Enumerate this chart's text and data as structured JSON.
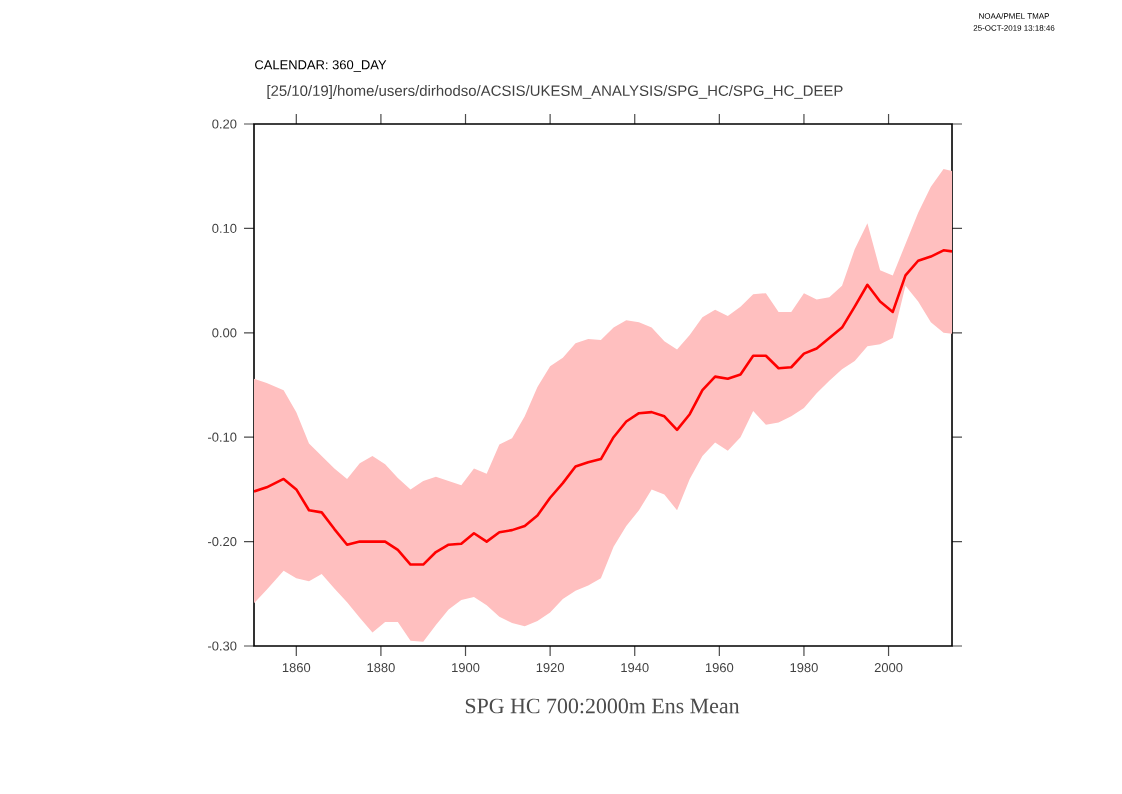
{
  "chart_data": {
    "type": "line",
    "title": "SPG HC 700:2000m Ens Mean",
    "annotations": [
      "CALENDAR: 360_DAY",
      "[25/10/19]/home/users/dirhodso/ACSIS/UKESM_ANALYSIS/SPG_HC/SPG_HC_DEEP",
      "NOAA/PMEL TMAP",
      "25-OCT-2019 13:18:46"
    ],
    "x": [
      1850,
      1853,
      1857,
      1860,
      1863,
      1866,
      1869,
      1872,
      1875,
      1878,
      1881,
      1884,
      1887,
      1890,
      1893,
      1896,
      1899,
      1902,
      1905,
      1908,
      1911,
      1914,
      1917,
      1920,
      1923,
      1926,
      1929,
      1932,
      1935,
      1938,
      1941,
      1944,
      1947,
      1950,
      1953,
      1956,
      1959,
      1962,
      1965,
      1968,
      1971,
      1974,
      1977,
      1980,
      1983,
      1986,
      1989,
      1992,
      1995,
      1998,
      2001,
      2004,
      2007,
      2010,
      2013,
      2015
    ],
    "series": [
      {
        "color": "#ff0000",
        "values": [
          -0.152,
          -0.148,
          -0.14,
          -0.15,
          -0.17,
          -0.172,
          -0.188,
          -0.203,
          -0.2,
          -0.2,
          -0.2,
          -0.208,
          -0.222,
          -0.222,
          -0.21,
          -0.203,
          -0.202,
          -0.192,
          -0.2,
          -0.191,
          -0.189,
          -0.185,
          -0.175,
          -0.158,
          -0.144,
          -0.128,
          -0.124,
          -0.121,
          -0.1,
          -0.085,
          -0.077,
          -0.076,
          -0.08,
          -0.093,
          -0.078,
          -0.055,
          -0.042,
          -0.044,
          -0.04,
          -0.022,
          -0.022,
          -0.034,
          -0.033,
          -0.02,
          -0.015,
          -0.005,
          0.005,
          0.025,
          0.046,
          0.03,
          0.02,
          0.055,
          0.069,
          0.073,
          0.079,
          0.078
        ],
        "upper": [
          -0.044,
          -0.048,
          -0.055,
          -0.076,
          -0.106,
          -0.118,
          -0.13,
          -0.14,
          -0.125,
          -0.118,
          -0.126,
          -0.139,
          -0.15,
          -0.142,
          -0.138,
          -0.142,
          -0.146,
          -0.13,
          -0.135,
          -0.107,
          -0.101,
          -0.08,
          -0.052,
          -0.032,
          -0.024,
          -0.01,
          -0.006,
          -0.007,
          0.005,
          0.012,
          0.01,
          0.005,
          -0.008,
          -0.016,
          -0.002,
          0.015,
          0.022,
          0.016,
          0.025,
          0.037,
          0.038,
          0.02,
          0.02,
          0.038,
          0.032,
          0.034,
          0.045,
          0.08,
          0.105,
          0.06,
          0.055,
          0.085,
          0.115,
          0.14,
          0.157,
          0.155
        ],
        "lower": [
          -0.259,
          -0.246,
          -0.228,
          -0.235,
          -0.238,
          -0.231,
          -0.245,
          -0.258,
          -0.273,
          -0.287,
          -0.277,
          -0.277,
          -0.295,
          -0.296,
          -0.28,
          -0.265,
          -0.256,
          -0.253,
          -0.261,
          -0.272,
          -0.278,
          -0.281,
          -0.276,
          -0.268,
          -0.255,
          -0.247,
          -0.242,
          -0.235,
          -0.205,
          -0.185,
          -0.17,
          -0.15,
          -0.155,
          -0.17,
          -0.14,
          -0.118,
          -0.105,
          -0.113,
          -0.1,
          -0.075,
          -0.088,
          -0.086,
          -0.08,
          -0.072,
          -0.058,
          -0.046,
          -0.035,
          -0.027,
          -0.013,
          -0.011,
          -0.005,
          0.045,
          0.03,
          0.01,
          0.0,
          -0.001
        ]
      }
    ],
    "xlim": [
      1850,
      2015
    ],
    "xticks": [
      1860,
      1880,
      1900,
      1920,
      1940,
      1960,
      1980,
      2000
    ],
    "ylim": [
      -0.3,
      0.2
    ],
    "yticks": [
      {
        "value": -0.3,
        "label": "-0.30"
      },
      {
        "value": -0.2,
        "label": "-0.20"
      },
      {
        "value": -0.1,
        "label": "-0.10"
      },
      {
        "value": 0,
        "label": "0.00"
      },
      {
        "value": 0.1,
        "label": "0.10"
      },
      {
        "value": 0.2,
        "label": "0.20"
      }
    ]
  }
}
